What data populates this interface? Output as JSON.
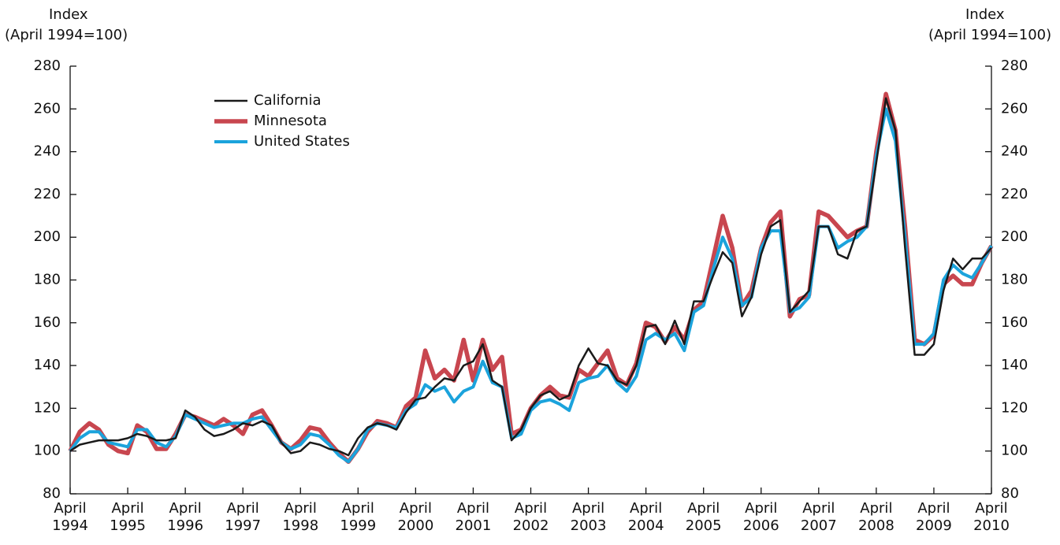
{
  "chart_data": {
    "type": "line",
    "y_label": "Index",
    "y_label_note": "(April 1994=100)",
    "y2_label": "Index",
    "y2_label_note": "(April 1994=100)",
    "x": [
      "1994-04",
      "1994-06",
      "1994-08",
      "1994-10",
      "1994-12",
      "1995-02",
      "1995-04",
      "1995-06",
      "1995-08",
      "1995-10",
      "1995-12",
      "1996-02",
      "1996-04",
      "1996-06",
      "1996-08",
      "1996-10",
      "1996-12",
      "1997-02",
      "1997-04",
      "1997-06",
      "1997-08",
      "1997-10",
      "1997-12",
      "1998-02",
      "1998-04",
      "1998-06",
      "1998-08",
      "1998-10",
      "1998-12",
      "1999-02",
      "1999-04",
      "1999-06",
      "1999-08",
      "1999-10",
      "1999-12",
      "2000-02",
      "2000-04",
      "2000-06",
      "2000-08",
      "2000-10",
      "2000-12",
      "2001-02",
      "2001-04",
      "2001-06",
      "2001-08",
      "2001-10",
      "2001-12",
      "2002-02",
      "2002-04",
      "2002-06",
      "2002-08",
      "2002-10",
      "2002-12",
      "2003-02",
      "2003-04",
      "2003-06",
      "2003-08",
      "2003-10",
      "2003-12",
      "2004-02",
      "2004-04",
      "2004-06",
      "2004-08",
      "2004-10",
      "2004-12",
      "2005-02",
      "2005-04",
      "2005-06",
      "2005-08",
      "2005-10",
      "2005-12",
      "2006-02",
      "2006-04",
      "2006-06",
      "2006-08",
      "2006-10",
      "2006-12",
      "2007-02",
      "2007-04",
      "2007-06",
      "2007-08",
      "2007-10",
      "2007-12",
      "2008-02",
      "2008-04",
      "2008-06",
      "2008-08",
      "2008-10",
      "2008-12",
      "2009-02",
      "2009-04",
      "2009-06",
      "2009-08",
      "2009-10",
      "2009-12",
      "2010-02",
      "2010-04"
    ],
    "series": [
      {
        "name": "California",
        "color": "#1a1a1a",
        "values": [
          100,
          103,
          104,
          105,
          105,
          105,
          106,
          108,
          107,
          105,
          105,
          106,
          119,
          116,
          110,
          107,
          108,
          110,
          113,
          112,
          114,
          112,
          104,
          99,
          100,
          104,
          103,
          101,
          100,
          98,
          106,
          111,
          113,
          112,
          110,
          118,
          124,
          125,
          130,
          134,
          133,
          140,
          142,
          150,
          133,
          130,
          105,
          110,
          120,
          126,
          128,
          124,
          126,
          140,
          148,
          141,
          140,
          133,
          131,
          140,
          158,
          159,
          150,
          161,
          150,
          170,
          170,
          182,
          193,
          188,
          163,
          172,
          192,
          205,
          208,
          165,
          170,
          175,
          205,
          205,
          192,
          190,
          203,
          205,
          235,
          265,
          250,
          195,
          145,
          145,
          150,
          175,
          190,
          185,
          190,
          190,
          195
        ]
      },
      {
        "name": "Minnesota",
        "color": "#c8464f",
        "values": [
          100,
          109,
          113,
          110,
          103,
          100,
          99,
          112,
          109,
          101,
          101,
          108,
          117,
          116,
          114,
          112,
          115,
          112,
          108,
          117,
          119,
          112,
          104,
          101,
          105,
          111,
          110,
          104,
          99,
          95,
          101,
          109,
          114,
          113,
          111,
          121,
          125,
          147,
          134,
          138,
          133,
          152,
          133,
          152,
          138,
          144,
          108,
          110,
          120,
          126,
          130,
          126,
          125,
          138,
          135,
          141,
          147,
          134,
          131,
          141,
          160,
          158,
          151,
          158,
          152,
          166,
          170,
          190,
          210,
          195,
          168,
          175,
          195,
          207,
          212,
          163,
          171,
          173,
          212,
          210,
          205,
          200,
          203,
          205,
          240,
          267,
          250,
          205,
          152,
          150,
          154,
          178,
          182,
          178,
          178,
          188,
          196
        ]
      },
      {
        "name": "United States",
        "color": "#1ba3dc",
        "values": [
          100,
          106,
          109,
          109,
          104,
          103,
          102,
          110,
          110,
          104,
          102,
          107,
          117,
          115,
          113,
          111,
          112,
          113,
          113,
          115,
          116,
          110,
          104,
          101,
          103,
          108,
          107,
          103,
          98,
          95,
          101,
          110,
          113,
          112,
          111,
          119,
          122,
          131,
          128,
          130,
          123,
          128,
          130,
          142,
          132,
          130,
          106,
          108,
          119,
          123,
          124,
          122,
          119,
          132,
          134,
          135,
          140,
          132,
          128,
          135,
          152,
          155,
          152,
          155,
          147,
          165,
          168,
          185,
          200,
          190,
          168,
          172,
          195,
          203,
          203,
          165,
          167,
          172,
          205,
          205,
          195,
          198,
          200,
          205,
          238,
          260,
          245,
          200,
          150,
          150,
          155,
          180,
          187,
          183,
          181,
          188,
          196
        ]
      }
    ],
    "xlim": [
      "1994-04",
      "2010-04"
    ],
    "xticks": [
      {
        "value": "1994-04",
        "label": "April 1994"
      },
      {
        "value": "1995-04",
        "label": "April 1995"
      },
      {
        "value": "1996-04",
        "label": "April 1996"
      },
      {
        "value": "1997-04",
        "label": "April 1997"
      },
      {
        "value": "1998-04",
        "label": "April 1998"
      },
      {
        "value": "1999-04",
        "label": "April 1999"
      },
      {
        "value": "2000-04",
        "label": "April 2000"
      },
      {
        "value": "2001-04",
        "label": "April 2001"
      },
      {
        "value": "2002-04",
        "label": "April 2002"
      },
      {
        "value": "2003-04",
        "label": "April 2003"
      },
      {
        "value": "2004-04",
        "label": "April 2004"
      },
      {
        "value": "2005-04",
        "label": "April 2005"
      },
      {
        "value": "2006-04",
        "label": "April 2006"
      },
      {
        "value": "2007-04",
        "label": "April 2007"
      },
      {
        "value": "2008-04",
        "label": "April 2008"
      },
      {
        "value": "2009-04",
        "label": "April 2009"
      },
      {
        "value": "2010-04",
        "label": "April 2010"
      }
    ],
    "ylim": [
      80,
      280
    ],
    "yticks": [
      80,
      100,
      120,
      140,
      160,
      180,
      200,
      220,
      240,
      260,
      280
    ],
    "y2lim": [
      80,
      280
    ],
    "y2ticks": [
      80,
      100,
      120,
      140,
      160,
      180,
      200,
      220,
      240,
      260,
      280
    ],
    "legend": "upper left"
  }
}
